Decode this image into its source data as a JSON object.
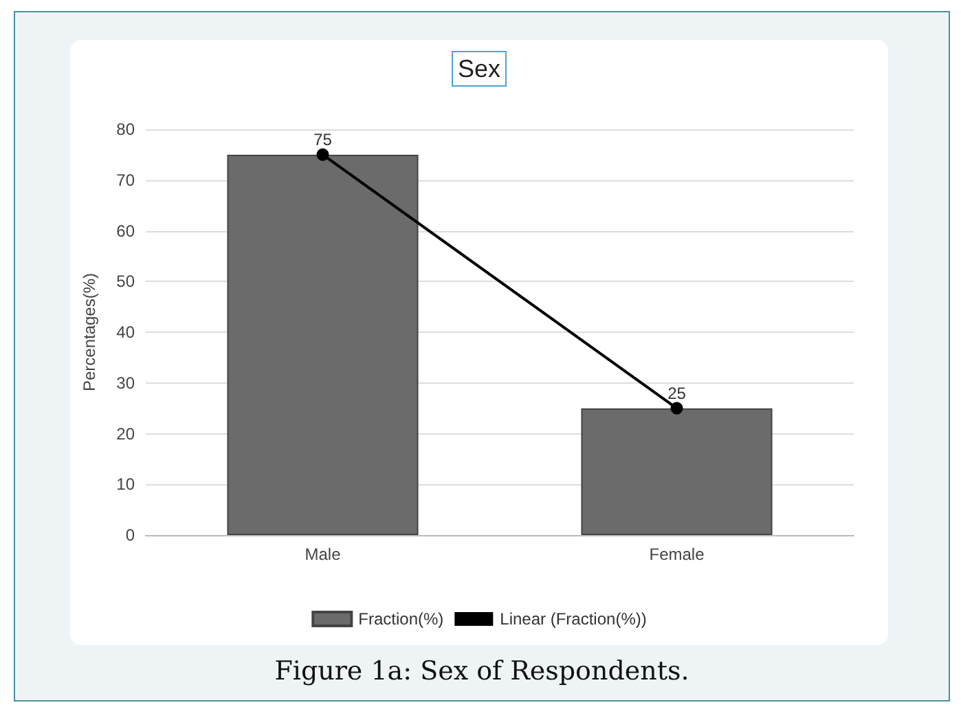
{
  "chart_data": {
    "type": "bar",
    "title": "Sex",
    "ylabel": "Percentages(%)",
    "categories": [
      "Male",
      "Female"
    ],
    "series": [
      {
        "name": "Fraction(%)",
        "color": "#6b6b6b",
        "values": [
          75,
          25
        ],
        "value_labels": [
          "75",
          "25"
        ]
      },
      {
        "name": "Linear (Fraction(%))",
        "type": "line",
        "color": "#000000",
        "values": [
          75,
          25
        ]
      }
    ],
    "ylim": [
      0,
      80
    ],
    "yticks": [
      0,
      10,
      20,
      30,
      40,
      50,
      60,
      70,
      80
    ],
    "grid": "y",
    "legend": "bottom",
    "marker": "circle",
    "line_style": "solid",
    "annotations": [
      "Figure 1a: Sex of Respondents."
    ]
  }
}
